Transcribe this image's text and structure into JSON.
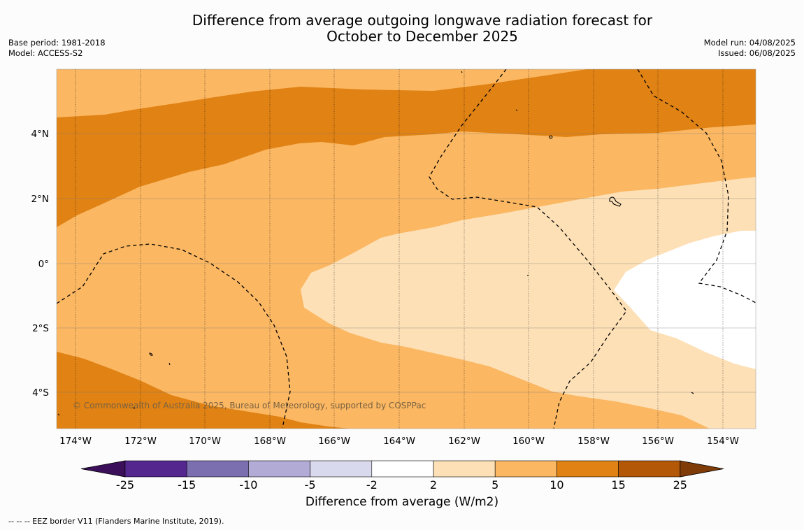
{
  "title_line1": "Difference from average outgoing longwave radiation forecast for",
  "title_line2": "October to December 2025",
  "meta_left": [
    "Base period: 1981-2018",
    "Model: ACCESS-S2"
  ],
  "meta_right": [
    "Model run: 04/08/2025",
    "Issued: 06/08/2025"
  ],
  "copyright": "© Commonwealth of Australia 2025, Bureau of Meteorology, supported by COSPPac",
  "lat_labels": [
    "4°N",
    "2°N",
    "0°",
    "2°S",
    "4°S"
  ],
  "lon_labels": [
    "174°W",
    "172°W",
    "170°W",
    "168°W",
    "166°W",
    "164°W",
    "162°W",
    "160°W",
    "158°W",
    "156°W",
    "154°W"
  ],
  "colorbar": {
    "title": "Difference from average (W/m2)",
    "ticks": [
      "-25",
      "-15",
      "-10",
      "-5",
      "-2",
      "2",
      "5",
      "10",
      "15",
      "25"
    ],
    "colors": [
      "#3b0f5a",
      "#54278f",
      "#7b6fb0",
      "#b2abd5",
      "#d9d9ee",
      "#ffffff",
      "#fde0b6",
      "#fbb762",
      "#e08214",
      "#b35806",
      "#7f3b08"
    ]
  },
  "footnote": "--  --  -- EEZ border V11 (Flanders Marine Institute, 2019)."
}
